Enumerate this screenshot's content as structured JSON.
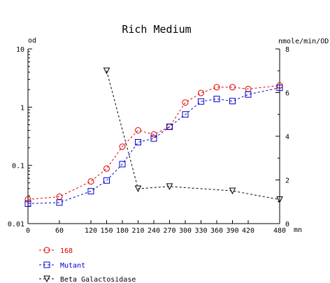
{
  "chart_data": {
    "type": "line",
    "title": "Rich Medium",
    "y_left_label": "od",
    "y_right_label": "nmole/min/OD",
    "x_unit": "mn",
    "x_range": [
      0,
      480
    ],
    "y_left_range": [
      0.01,
      10
    ],
    "y_left_scale": "log",
    "y_right_range": [
      0,
      8
    ],
    "x_ticks": [
      "0",
      "60",
      "120",
      "150",
      "180",
      "210",
      "240",
      "270",
      "300",
      "330",
      "360",
      "390",
      "420",
      "480"
    ],
    "y_left_ticks": [
      "0.01",
      "0.1",
      "1",
      "10"
    ],
    "y_right_ticks": [
      "0",
      "2",
      "4",
      "6",
      "8"
    ],
    "grid": false,
    "legend_position": "bottom-left",
    "series": [
      {
        "name": "168",
        "axis": "left",
        "marker": "circle",
        "color": "#dd0000",
        "x": [
          0,
          60,
          120,
          150,
          180,
          210,
          240,
          270,
          300,
          330,
          360,
          390,
          420,
          480
        ],
        "y": [
          0.026,
          0.029,
          0.053,
          0.088,
          0.21,
          0.4,
          0.34,
          0.46,
          1.2,
          1.75,
          2.2,
          2.2,
          2.05,
          2.35
        ]
      },
      {
        "name": "Mutant",
        "axis": "left",
        "marker": "square",
        "color": "#0000cc",
        "x": [
          0,
          60,
          120,
          150,
          180,
          210,
          240,
          270,
          300,
          330,
          360,
          390,
          420,
          480
        ],
        "y": [
          0.022,
          0.023,
          0.036,
          0.055,
          0.105,
          0.25,
          0.29,
          0.46,
          0.75,
          1.25,
          1.38,
          1.27,
          1.65,
          2.15
        ]
      },
      {
        "name": "Beta Galactosidase",
        "axis": "right",
        "marker": "triangle-down",
        "color": "#000000",
        "x": [
          150,
          210,
          270,
          390,
          480
        ],
        "y": [
          7.0,
          1.6,
          1.7,
          1.5,
          1.1
        ]
      }
    ]
  }
}
